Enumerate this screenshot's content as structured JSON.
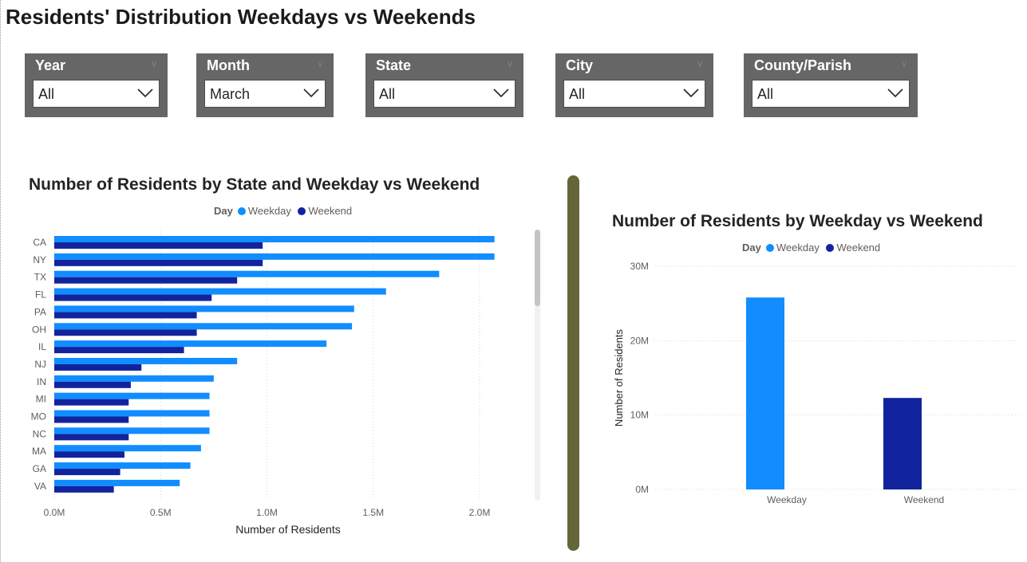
{
  "page": {
    "title": "Residents' Distribution Weekdays vs Weekends"
  },
  "slicers": [
    {
      "id": "year",
      "label": "Year",
      "value": "All"
    },
    {
      "id": "month",
      "label": "Month",
      "value": "March"
    },
    {
      "id": "state",
      "label": "State",
      "value": "All"
    },
    {
      "id": "city",
      "label": "City",
      "value": "All"
    },
    {
      "id": "county",
      "label": "County/Parish",
      "value": "All"
    }
  ],
  "colors": {
    "weekday": "#118dff",
    "weekend": "#12239e",
    "divider": "#65653a",
    "slicer_bg": "#666666"
  },
  "chart_data": [
    {
      "type": "bar",
      "orientation": "horizontal",
      "title": "Number of Residents by State and Weekday vs Weekend",
      "legend_title": "Day",
      "xlabel": "Number of Residents",
      "ylabel": "",
      "xlim": [
        0,
        2.2
      ],
      "xticks": [
        "0.0M",
        "0.5M",
        "1.0M",
        "1.5M",
        "2.0M"
      ],
      "xtick_values": [
        0,
        0.5,
        1.0,
        1.5,
        2.0
      ],
      "unit": "M",
      "grid": "vertical dotted",
      "legend_position": "top",
      "categories": [
        "CA",
        "NY",
        "TX",
        "FL",
        "PA",
        "OH",
        "IL",
        "NJ",
        "IN",
        "MI",
        "MO",
        "NC",
        "MA",
        "GA",
        "VA"
      ],
      "series": [
        {
          "name": "Weekday",
          "values": [
            2.07,
            2.07,
            1.81,
            1.56,
            1.41,
            1.4,
            1.28,
            0.86,
            0.75,
            0.73,
            0.73,
            0.73,
            0.69,
            0.64,
            0.59
          ]
        },
        {
          "name": "Weekend",
          "values": [
            0.98,
            0.98,
            0.86,
            0.74,
            0.67,
            0.67,
            0.61,
            0.41,
            0.36,
            0.35,
            0.35,
            0.35,
            0.33,
            0.31,
            0.28
          ]
        }
      ]
    },
    {
      "type": "bar",
      "orientation": "vertical",
      "title": "Number of Residents by Weekday vs Weekend",
      "legend_title": "Day",
      "xlabel": "",
      "ylabel": "Number of Residents",
      "ylim": [
        0,
        30
      ],
      "yticks": [
        "0M",
        "10M",
        "20M",
        "30M"
      ],
      "ytick_values": [
        0,
        10,
        20,
        30
      ],
      "unit": "M",
      "grid": "horizontal dotted",
      "legend_position": "top",
      "categories": [
        "Weekday",
        "Weekend"
      ],
      "series": [
        {
          "name": "Weekday",
          "values": [
            25.8,
            null
          ]
        },
        {
          "name": "Weekend",
          "values": [
            null,
            12.3
          ]
        }
      ]
    }
  ]
}
